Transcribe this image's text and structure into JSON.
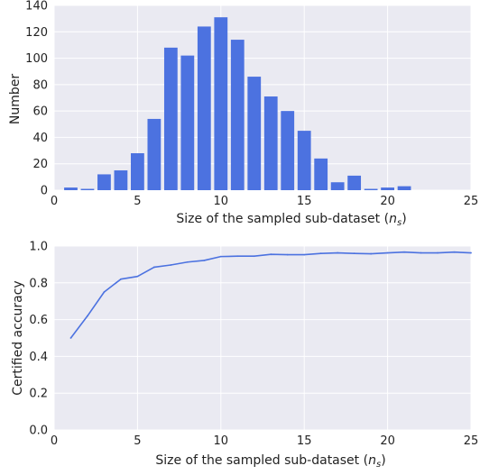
{
  "chart_data": [
    {
      "type": "bar",
      "xlabel": "Size of the sampled sub-dataset ",
      "xlabel_math": "n",
      "xlabel_math_sub": "s",
      "ylabel": "Number",
      "xlim": [
        0,
        25
      ],
      "ylim": [
        0,
        140
      ],
      "x_ticks": [
        0,
        5,
        10,
        15,
        20,
        25
      ],
      "y_ticks": [
        0,
        20,
        40,
        60,
        80,
        100,
        120,
        140
      ],
      "grid": true,
      "background_color": "#eaeaf2",
      "bar_color": "#4c72e0",
      "x": [
        1,
        2,
        3,
        4,
        5,
        6,
        7,
        8,
        9,
        10,
        11,
        12,
        13,
        14,
        15,
        16,
        17,
        18,
        19,
        20,
        21,
        22,
        23,
        24
      ],
      "values": [
        2,
        1,
        12,
        15,
        28,
        54,
        108,
        102,
        124,
        131,
        114,
        86,
        71,
        60,
        45,
        24,
        6,
        11,
        1,
        2,
        3,
        0,
        0,
        0
      ]
    },
    {
      "type": "line",
      "xlabel": "Size of the sampled sub-dataset ",
      "xlabel_math": "n",
      "xlabel_math_sub": "s",
      "ylabel": "Certified accuracy",
      "xlim": [
        0,
        25
      ],
      "ylim": [
        0,
        1.0
      ],
      "x_ticks": [
        0,
        5,
        10,
        15,
        20,
        25
      ],
      "y_ticks": [
        0.0,
        0.2,
        0.4,
        0.6,
        0.8,
        1.0
      ],
      "y_tick_decimals": 1,
      "grid": true,
      "background_color": "#eaeaf2",
      "line_color": "#4c72e0",
      "x": [
        1,
        2,
        3,
        4,
        5,
        6,
        7,
        8,
        9,
        10,
        11,
        12,
        13,
        14,
        15,
        16,
        17,
        18,
        19,
        20,
        21,
        22,
        23,
        24,
        25
      ],
      "values": [
        0.5,
        0.62,
        0.75,
        0.82,
        0.835,
        0.885,
        0.897,
        0.913,
        0.922,
        0.943,
        0.945,
        0.945,
        0.955,
        0.953,
        0.953,
        0.96,
        0.963,
        0.96,
        0.958,
        0.963,
        0.967,
        0.963,
        0.963,
        0.967,
        0.963
      ]
    }
  ]
}
